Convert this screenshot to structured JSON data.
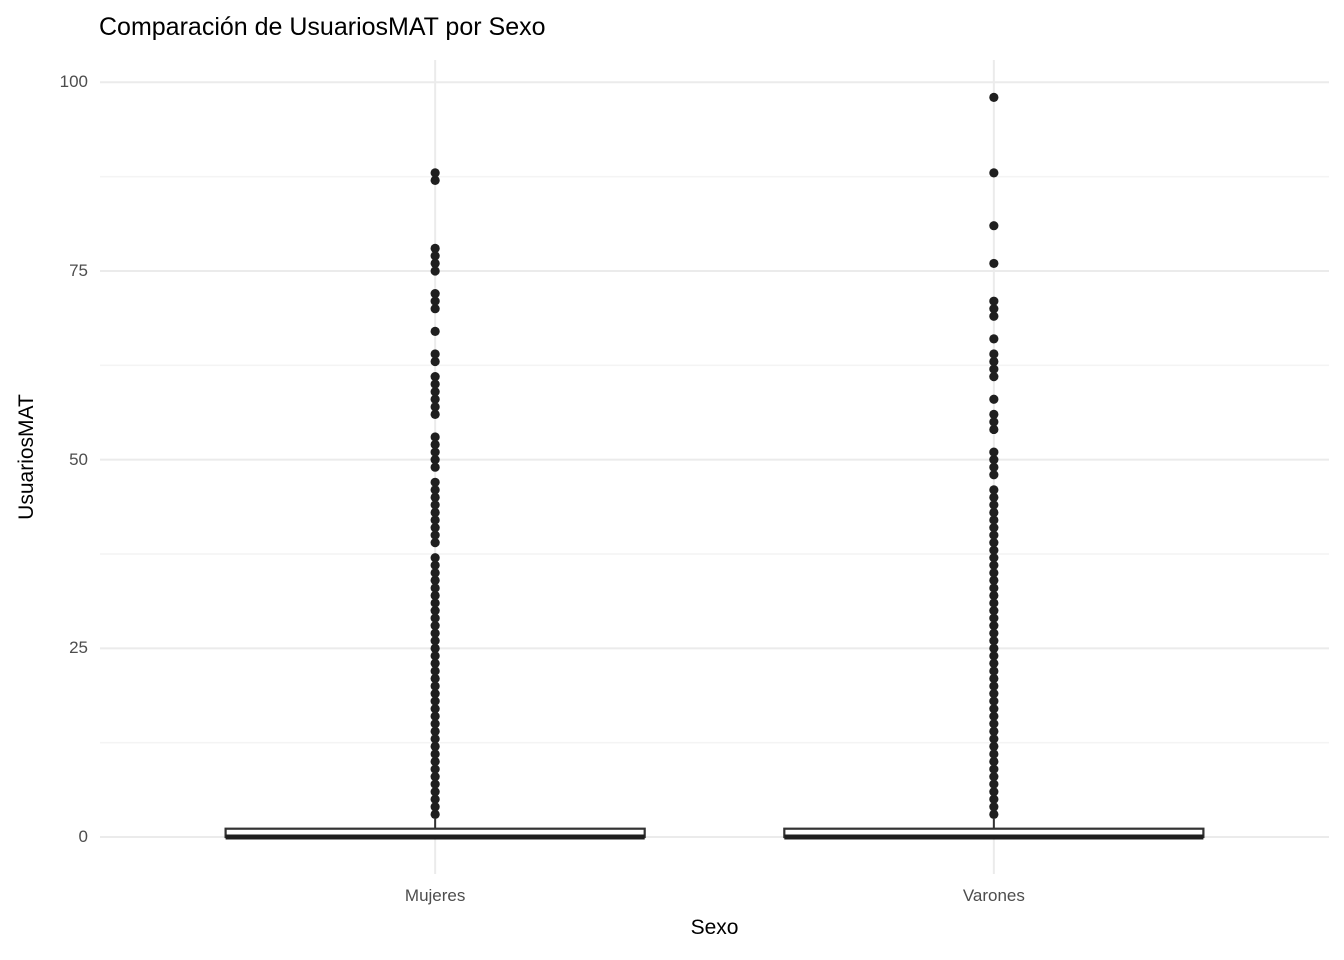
{
  "chart_data": {
    "type": "boxplot",
    "title": "Comparación de UsuariosMAT por Sexo",
    "xlabel": "Sexo",
    "ylabel": "UsuariosMAT",
    "ylim": [
      0,
      100
    ],
    "y_major_ticks": [
      0,
      25,
      50,
      75,
      100
    ],
    "y_minor_ticks": [
      12.5,
      37.5,
      62.5,
      87.5
    ],
    "grid": "horizontal major+minor gridlines, one vertical gridline per category, white background, no axis tick marks",
    "legend": "none",
    "categories": [
      "Mujeres",
      "Varones"
    ],
    "groups": [
      {
        "label": "Mujeres",
        "box": {
          "whisker_low": 0,
          "q1": 0,
          "median": 0,
          "q3": 1.1,
          "whisker_high": 2.4
        },
        "outliers": [
          3,
          4,
          5,
          6,
          7,
          8,
          9,
          10,
          11,
          12,
          13,
          14,
          15,
          16,
          17,
          18,
          19,
          20,
          21,
          22,
          23,
          24,
          25,
          26,
          27,
          28,
          29,
          30,
          31,
          32,
          33,
          34,
          35,
          36,
          37,
          39,
          40,
          41,
          42,
          43,
          44,
          45,
          46,
          47,
          49,
          50,
          51,
          52,
          53,
          56,
          57,
          58,
          59,
          60,
          61,
          63,
          64,
          67,
          70,
          71,
          72,
          75,
          76,
          77,
          78,
          87,
          88
        ]
      },
      {
        "label": "Varones",
        "box": {
          "whisker_low": 0,
          "q1": 0,
          "median": 0,
          "q3": 1.1,
          "whisker_high": 2.4
        },
        "outliers": [
          3,
          4,
          5,
          6,
          7,
          8,
          9,
          10,
          11,
          12,
          13,
          14,
          15,
          16,
          17,
          18,
          19,
          20,
          21,
          22,
          23,
          24,
          25,
          26,
          27,
          28,
          29,
          30,
          31,
          32,
          33,
          34,
          35,
          36,
          37,
          38,
          39,
          40,
          41,
          42,
          43,
          44,
          45,
          46,
          48,
          49,
          50,
          51,
          54,
          55,
          56,
          58,
          61,
          62,
          63,
          64,
          66,
          69,
          70,
          71,
          76,
          81,
          88,
          98
        ]
      }
    ],
    "colors": {
      "background": "#ffffff",
      "grid_major": "#ebebeb",
      "grid_minor": "#f4f4f4",
      "box_stroke": "#333333",
      "box_fill": "#ffffff",
      "median": "#1f1f1f",
      "point": "#1f1f1f",
      "tick_label": "#4d4d4d",
      "title_text": "#000000"
    }
  }
}
